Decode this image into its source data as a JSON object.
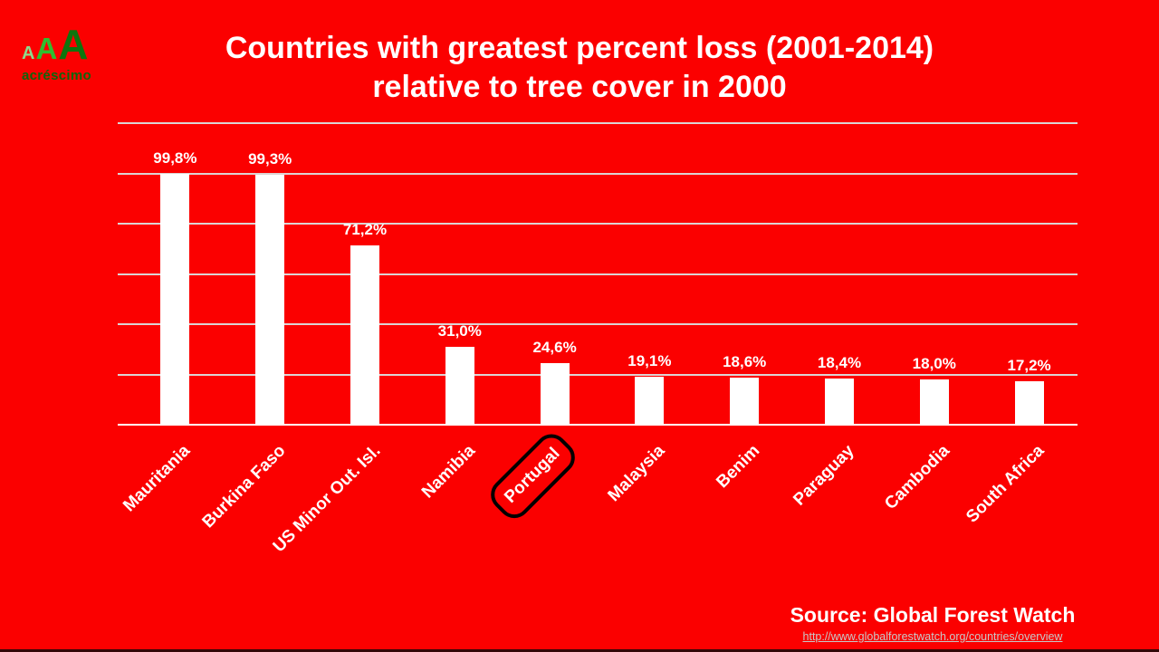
{
  "app": {
    "background": "#FB0000",
    "footer_strip_color": "#330808"
  },
  "logo": {
    "letters": [
      {
        "char": "A",
        "color": "#8CD98C"
      },
      {
        "char": "A",
        "color": "#2FBF2F"
      },
      {
        "char": "A",
        "color": "#0E750E"
      }
    ],
    "wordmark": {
      "text": "acréscimo",
      "color": "#0C660C"
    }
  },
  "title": {
    "line1": "Countries with greatest percent loss (2001-2014)",
    "line2": "relative to tree cover in 2000",
    "color": "#FFFFFF"
  },
  "chart_data": {
    "type": "bar",
    "title": "Countries with greatest percent loss (2001-2014) relative to tree cover in 2000",
    "categories": [
      "Mauritania",
      "Burkina Faso",
      "US Minor Out. Isl.",
      "Namibia",
      "Portugal",
      "Malaysia",
      "Benim",
      "Paraguay",
      "Cambodia",
      "South Africa"
    ],
    "values": [
      99.8,
      99.3,
      71.2,
      31.0,
      24.6,
      19.1,
      18.6,
      18.4,
      18.0,
      17.2
    ],
    "value_labels": [
      "99,8%",
      "99,3%",
      "71,2%",
      "31,0%",
      "24,6%",
      "19,1%",
      "18,6%",
      "18,4%",
      "18,0%",
      "17,2%"
    ],
    "unit": "%",
    "xlabel": "",
    "ylabel": "",
    "ylim": [
      0,
      120
    ],
    "ytick_step": 20,
    "yaxis_tick_labels_visible": false,
    "grid": true,
    "legend": false,
    "bar_color": "#FFFFFF",
    "gridline_color": "#DCD4D4",
    "axis_line_color": "#FFFFFF",
    "label_color": "#FFFFFF",
    "highlighted_category": "Portugal",
    "highlight_style": "black rounded rectangle outline around category label"
  },
  "source": {
    "label": "Source: Global Forest Watch",
    "url_text": "http://www.globalforestwatch.org/countries/overview",
    "url_color": "#C8C8C8"
  }
}
